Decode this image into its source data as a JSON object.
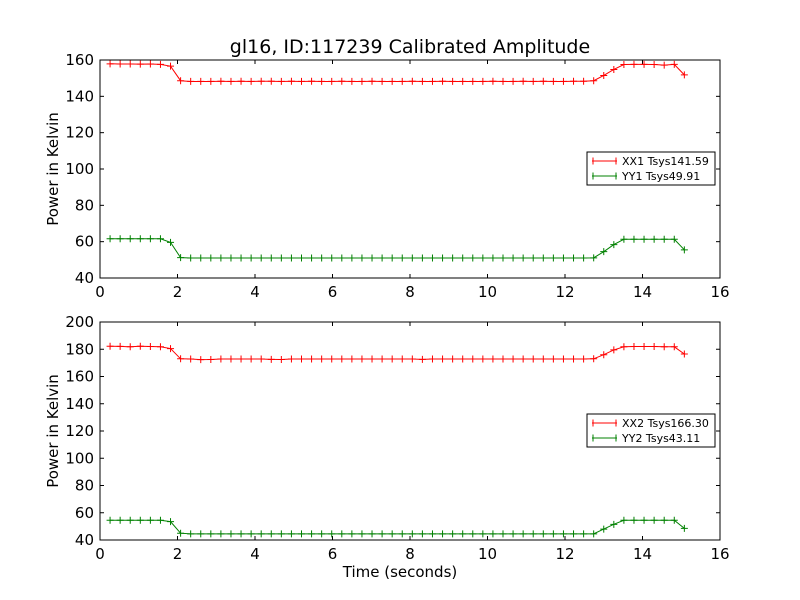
{
  "chart_data": [
    {
      "type": "line",
      "title": "gl16, ID:117239 Calibrated Amplitude",
      "xlabel": "",
      "ylabel": "Power in Kelvin",
      "xlim": [
        0,
        16
      ],
      "ylim": [
        40,
        160
      ],
      "xticks": [
        "0",
        "2",
        "4",
        "6",
        "8",
        "10",
        "12",
        "14",
        "16"
      ],
      "yticks": [
        "40",
        "60",
        "80",
        "100",
        "120",
        "140",
        "160"
      ],
      "legend_position": "center-right",
      "x": [
        0.26,
        0.52,
        0.78,
        1.04,
        1.3,
        1.56,
        1.82,
        2.08,
        2.34,
        2.6,
        2.86,
        3.12,
        3.38,
        3.64,
        3.9,
        4.16,
        4.42,
        4.68,
        4.94,
        5.2,
        5.46,
        5.72,
        5.98,
        6.24,
        6.5,
        6.76,
        7.02,
        7.28,
        7.54,
        7.8,
        8.06,
        8.32,
        8.58,
        8.84,
        9.1,
        9.36,
        9.62,
        9.88,
        10.14,
        10.4,
        10.66,
        10.92,
        11.18,
        11.44,
        11.7,
        11.96,
        12.22,
        12.48,
        12.74,
        13.0,
        13.26,
        13.52,
        13.78,
        14.04,
        14.3,
        14.56,
        14.82,
        15.08
      ],
      "series": [
        {
          "name": "XX1 Tsys141.59",
          "color": "#ff0000",
          "values": [
            157.9,
            157.8,
            157.8,
            157.7,
            157.8,
            157.6,
            156.6,
            148.6,
            148.2,
            148.2,
            148.2,
            148.3,
            148.2,
            148.3,
            148.2,
            148.3,
            148.3,
            148.2,
            148.3,
            148.2,
            148.3,
            148.2,
            148.2,
            148.3,
            148.2,
            148.2,
            148.3,
            148.2,
            148.2,
            148.2,
            148.3,
            148.2,
            148.2,
            148.3,
            148.2,
            148.2,
            148.2,
            148.2,
            148.3,
            148.2,
            148.2,
            148.3,
            148.2,
            148.3,
            148.2,
            148.2,
            148.3,
            148.3,
            148.6,
            151.5,
            154.8,
            157.5,
            157.6,
            157.6,
            157.5,
            157.2,
            157.6,
            151.8
          ]
        },
        {
          "name": "YY1 Tsys49.91",
          "color": "#008000",
          "values": [
            61.6,
            61.6,
            61.6,
            61.6,
            61.6,
            61.6,
            59.6,
            51.2,
            51.0,
            51.0,
            51.0,
            51.0,
            51.0,
            51.0,
            51.0,
            51.0,
            51.0,
            51.0,
            51.0,
            51.0,
            51.0,
            51.0,
            51.0,
            51.0,
            51.0,
            51.0,
            51.0,
            51.0,
            51.0,
            51.0,
            51.0,
            51.0,
            51.0,
            51.0,
            51.0,
            51.0,
            51.0,
            51.0,
            51.0,
            51.0,
            51.0,
            51.0,
            51.0,
            51.0,
            51.0,
            51.0,
            51.0,
            51.0,
            51.1,
            54.5,
            58.4,
            61.3,
            61.3,
            61.3,
            61.3,
            61.3,
            61.3,
            55.5
          ]
        }
      ],
      "legend": [
        "XX1 Tsys141.59",
        "YY1 Tsys49.91"
      ]
    },
    {
      "type": "line",
      "title": "",
      "xlabel": "Time (seconds)",
      "ylabel": "Power in Kelvin",
      "xlim": [
        0,
        16
      ],
      "ylim": [
        40,
        200
      ],
      "xticks": [
        "0",
        "2",
        "4",
        "6",
        "8",
        "10",
        "12",
        "14",
        "16"
      ],
      "yticks": [
        "40",
        "60",
        "80",
        "100",
        "120",
        "140",
        "160",
        "180",
        "200"
      ],
      "legend_position": "center-right",
      "x": [
        0.26,
        0.52,
        0.78,
        1.04,
        1.3,
        1.56,
        1.82,
        2.08,
        2.34,
        2.6,
        2.86,
        3.12,
        3.38,
        3.64,
        3.9,
        4.16,
        4.42,
        4.68,
        4.94,
        5.2,
        5.46,
        5.72,
        5.98,
        6.24,
        6.5,
        6.76,
        7.02,
        7.28,
        7.54,
        7.8,
        8.06,
        8.32,
        8.58,
        8.84,
        9.1,
        9.36,
        9.62,
        9.88,
        10.14,
        10.4,
        10.66,
        10.92,
        11.18,
        11.44,
        11.7,
        11.96,
        12.22,
        12.48,
        12.74,
        13.0,
        13.26,
        13.52,
        13.78,
        14.04,
        14.3,
        14.56,
        14.82,
        15.08
      ],
      "series": [
        {
          "name": "XX2 Tsys166.30",
          "color": "#ff0000",
          "values": [
            182.2,
            182.1,
            181.8,
            182.2,
            182.0,
            181.8,
            180.5,
            173.0,
            172.8,
            172.4,
            172.5,
            172.8,
            172.8,
            172.8,
            172.8,
            172.8,
            172.6,
            172.5,
            172.8,
            172.8,
            172.8,
            172.8,
            172.8,
            172.8,
            172.8,
            172.8,
            172.8,
            172.8,
            172.8,
            172.8,
            172.8,
            172.6,
            172.8,
            172.8,
            172.8,
            172.8,
            172.8,
            172.8,
            172.8,
            172.8,
            172.8,
            172.8,
            172.8,
            172.8,
            172.8,
            172.8,
            172.8,
            172.8,
            173.0,
            176.0,
            179.5,
            181.8,
            182.0,
            182.0,
            182.0,
            181.8,
            181.8,
            176.5
          ]
        },
        {
          "name": "YY2 Tsys43.11",
          "color": "#008000",
          "values": [
            54.5,
            54.5,
            54.5,
            54.5,
            54.5,
            54.5,
            53.5,
            45.0,
            44.5,
            44.5,
            44.5,
            44.5,
            44.5,
            44.5,
            44.5,
            44.5,
            44.5,
            44.5,
            44.5,
            44.5,
            44.5,
            44.5,
            44.5,
            44.5,
            44.5,
            44.5,
            44.5,
            44.5,
            44.5,
            44.5,
            44.5,
            44.5,
            44.5,
            44.5,
            44.5,
            44.5,
            44.5,
            44.5,
            44.5,
            44.5,
            44.5,
            44.5,
            44.5,
            44.5,
            44.5,
            44.5,
            44.5,
            44.5,
            44.5,
            48.0,
            51.5,
            54.5,
            54.5,
            54.5,
            54.5,
            54.5,
            54.5,
            48.5
          ]
        }
      ],
      "legend": [
        "XX2 Tsys166.30",
        "YY2 Tsys43.11"
      ]
    }
  ]
}
